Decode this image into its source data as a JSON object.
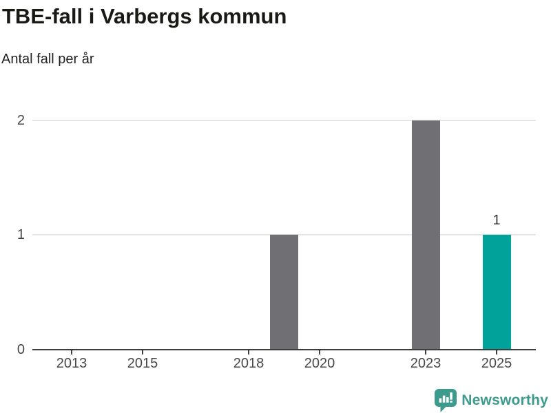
{
  "header": {
    "title": "TBE-fall i Varbergs kommun",
    "subtitle": "Antal fall per år"
  },
  "chart_data": {
    "type": "bar",
    "title": "TBE-fall i Varbergs kommun",
    "subtitle": "Antal fall per år",
    "xlabel": "",
    "ylabel": "Antal fall per år",
    "x_tick_labels": [
      "2013",
      "2015",
      "2018",
      "2020",
      "2023",
      "2025"
    ],
    "y_tick_labels": [
      "0",
      "1",
      "2"
    ],
    "x_domain": [
      2011.9,
      2026.1
    ],
    "ylim": [
      0,
      2
    ],
    "grid": "horizontal gridlines at y=1 and y=2, baseline axis at y=0",
    "legend": "none",
    "bars": [
      {
        "year": 2019,
        "value": 1,
        "color_key": "gray",
        "data_label": ""
      },
      {
        "year": 2023,
        "value": 2,
        "color_key": "gray",
        "data_label": ""
      },
      {
        "year": 2025,
        "value": 1,
        "color_key": "teal",
        "data_label": "1"
      }
    ],
    "colors": {
      "gray": "#6f6f74",
      "teal": "#00a29a",
      "grid": "#e4e4e4",
      "axis": "#3d3d3d",
      "tick_text": "#474747",
      "value_label_text": "#333333"
    }
  },
  "footer": {
    "brand": "Newsworthy",
    "brand_color": "#3d9b8e",
    "logo_icon": "speech-bubble-with-bar-chart-and-exclamation"
  }
}
